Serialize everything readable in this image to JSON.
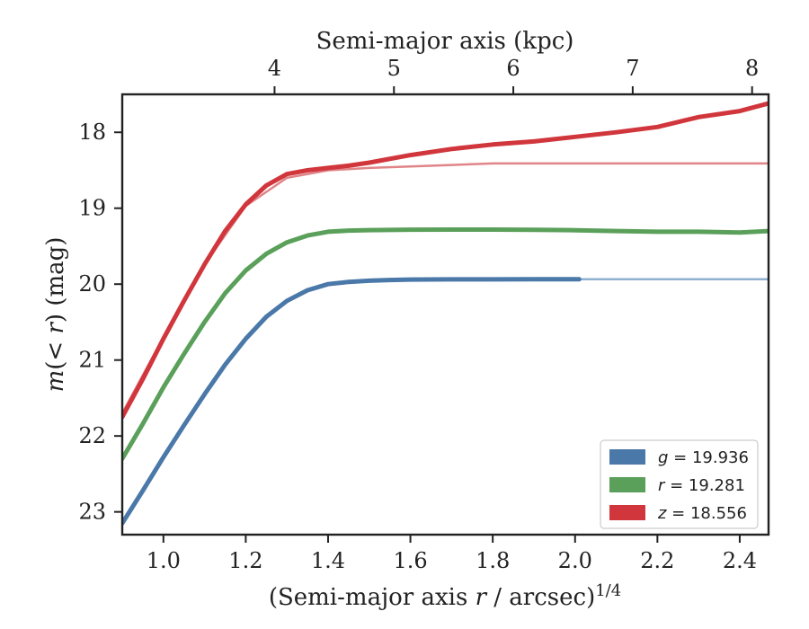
{
  "chart_data": {
    "type": "line",
    "xlabel": "(Semi-major axis r / arcsec)^1/4",
    "ylabel": "m(<r) (mag)",
    "top_xlabel": "Semi-major axis (kpc)",
    "xlim": [
      0.9,
      2.47
    ],
    "ylim": [
      23.3,
      17.5
    ],
    "y_inverted": true,
    "xticks": [
      1.0,
      1.2,
      1.4,
      1.6,
      1.8,
      2.0,
      2.2,
      2.4
    ],
    "xtick_labels": [
      "1.0",
      "1.2",
      "1.4",
      "1.6",
      "1.8",
      "2.0",
      "2.2",
      "2.4"
    ],
    "yticks": [
      18,
      19,
      20,
      21,
      22,
      23
    ],
    "ytick_labels": [
      "18",
      "19",
      "20",
      "21",
      "22",
      "23"
    ],
    "top_xticks_kpc": [
      4,
      5,
      6,
      7,
      8
    ],
    "top_xtick_labels": [
      "4",
      "5",
      "6",
      "7",
      "8"
    ],
    "top_xtick_positions": [
      1.27,
      1.56,
      1.85,
      2.14,
      2.43
    ],
    "grid": false,
    "legend_position": "bottom-right",
    "series": [
      {
        "name": "g = 19.936",
        "legend_var": "g",
        "legend_value": "19.936",
        "color": "#4a78a8",
        "model_color": "#8fb0cf",
        "x": [
          0.9,
          0.95,
          1.0,
          1.05,
          1.1,
          1.15,
          1.2,
          1.25,
          1.3,
          1.35,
          1.4,
          1.45,
          1.5,
          1.55,
          1.6,
          1.7,
          1.8,
          1.9,
          2.0,
          2.01
        ],
        "y": [
          23.15,
          22.72,
          22.28,
          21.86,
          21.45,
          21.06,
          20.72,
          20.43,
          20.22,
          20.08,
          20.0,
          19.97,
          19.955,
          19.945,
          19.94,
          19.937,
          19.937,
          19.936,
          19.936,
          19.936
        ],
        "model_x": [
          2.0,
          2.47
        ],
        "model_y": [
          19.936,
          19.936
        ]
      },
      {
        "name": "r = 19.281",
        "legend_var": "r",
        "legend_value": "19.281",
        "color": "#5aa05a",
        "model_color": "#8cc68c",
        "x": [
          0.9,
          0.95,
          1.0,
          1.05,
          1.1,
          1.15,
          1.2,
          1.25,
          1.3,
          1.35,
          1.4,
          1.45,
          1.5,
          1.6,
          1.7,
          1.8,
          1.9,
          2.0,
          2.1,
          2.2,
          2.3,
          2.4,
          2.47
        ],
        "y": [
          22.3,
          21.84,
          21.36,
          20.92,
          20.5,
          20.12,
          19.82,
          19.6,
          19.45,
          19.36,
          19.31,
          19.295,
          19.288,
          19.283,
          19.282,
          19.281,
          19.285,
          19.29,
          19.3,
          19.31,
          19.31,
          19.32,
          19.3
        ],
        "model_x": [],
        "model_y": []
      },
      {
        "name": "z = 18.556",
        "legend_var": "z",
        "legend_value": "18.556",
        "color": "#d0363c",
        "model_color": "#e08488",
        "x": [
          0.9,
          0.95,
          1.0,
          1.05,
          1.1,
          1.15,
          1.2,
          1.25,
          1.3,
          1.35,
          1.4,
          1.45,
          1.5,
          1.6,
          1.7,
          1.8,
          1.9,
          2.0,
          2.1,
          2.2,
          2.3,
          2.4,
          2.47
        ],
        "y": [
          21.75,
          21.25,
          20.72,
          20.22,
          19.74,
          19.3,
          18.95,
          18.7,
          18.55,
          18.5,
          18.47,
          18.44,
          18.4,
          18.3,
          18.22,
          18.16,
          18.12,
          18.06,
          18.0,
          17.93,
          17.8,
          17.72,
          17.62
        ],
        "model_x": [
          0.9,
          1.0,
          1.1,
          1.2,
          1.3,
          1.4,
          1.5,
          1.6,
          1.8,
          2.0,
          2.2,
          2.47
        ],
        "model_y": [
          21.7,
          20.7,
          19.74,
          18.97,
          18.6,
          18.5,
          18.47,
          18.45,
          18.41,
          18.41,
          18.41,
          18.41
        ]
      }
    ]
  }
}
